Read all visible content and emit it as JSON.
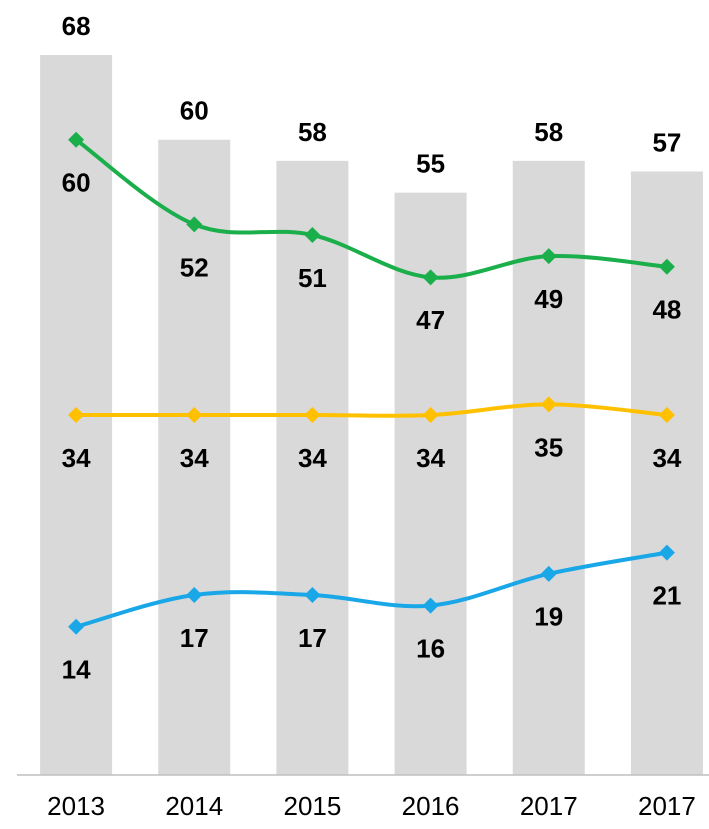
{
  "chart_data": {
    "type": "combo",
    "categories": [
      "2013",
      "2014",
      "2015",
      "2016",
      "2017",
      "2017"
    ],
    "series": [
      {
        "type": "bar",
        "color": "#d9d9d9",
        "values": [
          68,
          60,
          58,
          55,
          58,
          57
        ]
      },
      {
        "type": "line",
        "color": "#1aaf4b",
        "values": [
          60,
          52,
          51,
          47,
          49,
          48
        ]
      },
      {
        "type": "line",
        "color": "#ffc000",
        "values": [
          34,
          34,
          34,
          34,
          35,
          34
        ]
      },
      {
        "type": "line",
        "color": "#1aa7e8",
        "values": [
          14,
          17,
          17,
          16,
          19,
          21
        ]
      }
    ]
  }
}
